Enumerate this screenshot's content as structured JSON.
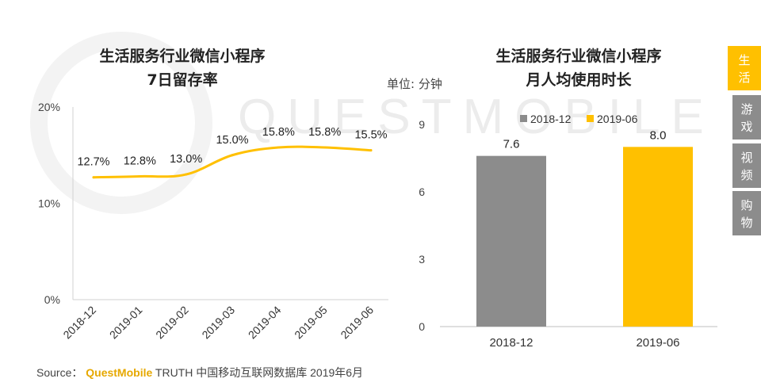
{
  "watermark_text": "QUESTMOBILE",
  "left_chart": {
    "title_line1": "生活服务行业微信小程序",
    "title_line2": "7日留存率"
  },
  "right_chart": {
    "title_line1": "生活服务行业微信小程序",
    "title_line2": "月人均使用时长",
    "unit_label": "单位: 分钟"
  },
  "side_tabs": [
    {
      "label_top": "生",
      "label_bottom": "活",
      "active": true
    },
    {
      "label_top": "游",
      "label_bottom": "戏",
      "active": false
    },
    {
      "label_top": "视",
      "label_bottom": "频",
      "active": false
    },
    {
      "label_top": "购",
      "label_bottom": "物",
      "active": false
    }
  ],
  "source": {
    "prefix": "Source：",
    "brand": "QuestMobile",
    "suffix": "TRUTH 中国移动互联网数据库 2019年6月"
  },
  "colors": {
    "line": "#ffc000",
    "bar_2018": "#8c8c8c",
    "bar_2019": "#ffc000",
    "accent": "#ffc000",
    "tab_inactive": "#8c8c8c"
  },
  "chart_data": [
    {
      "type": "line",
      "title": "生活服务行业微信小程序 7日留存率",
      "categories": [
        "2018-12",
        "2019-01",
        "2019-02",
        "2019-03",
        "2019-04",
        "2019-05",
        "2019-06"
      ],
      "values": [
        12.7,
        12.8,
        13.0,
        15.0,
        15.8,
        15.8,
        15.5
      ],
      "data_labels": [
        "12.7%",
        "12.8%",
        "13.0%",
        "15.0%",
        "15.8%",
        "15.8%",
        "15.5%"
      ],
      "yticks": [
        "0%",
        "10%",
        "20%"
      ],
      "ylim": [
        0,
        20
      ],
      "grid": false,
      "legend": "none"
    },
    {
      "type": "bar",
      "title": "生活服务行业微信小程序 月人均使用时长",
      "ylabel": "单位: 分钟",
      "categories": [
        "2018-12",
        "2019-06"
      ],
      "series": [
        {
          "name": "2018-12",
          "values": [
            7.6,
            null
          ]
        },
        {
          "name": "2019-06",
          "values": [
            null,
            8.0
          ]
        }
      ],
      "data_labels": [
        "7.6",
        "8.0"
      ],
      "yticks": [
        "0",
        "3",
        "6",
        "9"
      ],
      "ylim": [
        0,
        9
      ],
      "grid": false,
      "legend": "top"
    }
  ]
}
